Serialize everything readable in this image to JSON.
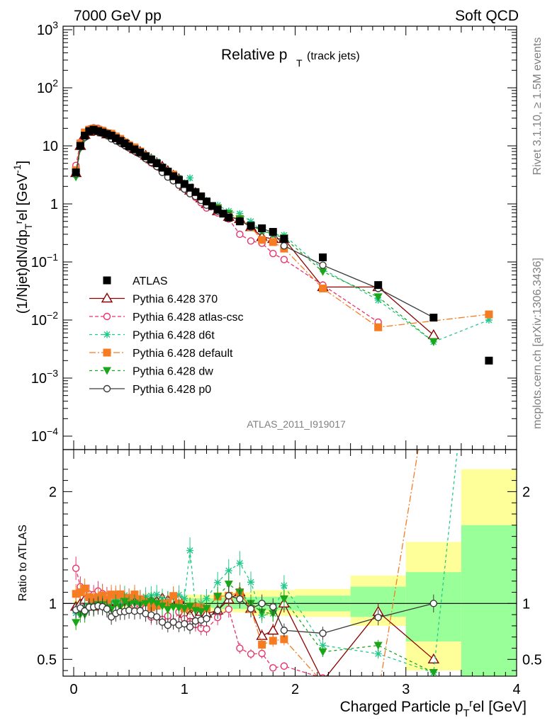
{
  "header": {
    "left": "7000 GeV pp",
    "right": "Soft QCD"
  },
  "side": {
    "rivet": "Rivet 3.1.10, ≥ 1.5M events",
    "mcplots": "mcplots.cern.ch [arXiv:1306.3436]"
  },
  "plot_title": {
    "main": "Relative p",
    "sub": "T",
    "note": "(track jets)"
  },
  "analysis_id": "ATLAS_2011_I919017",
  "colors": {
    "atlas": "#000000",
    "p370": "#8b0000",
    "atlas_csc": "#e8336a",
    "d6t": "#23c98a",
    "default": "#f57c23",
    "dw": "#1aa51a",
    "p0": "#3a3a3a",
    "band_yellow": "#ffff99",
    "band_green": "#99ff99"
  },
  "chart_data": [
    {
      "type": "line",
      "panel": "main",
      "ylabel": "(1/Njet)dN/dp_T^rel [GeV^-1]",
      "yscale": "log",
      "ylim": [
        0.0001,
        1000
      ],
      "xlim": [
        -0.1,
        4.0
      ],
      "yticks": [
        {
          "v": 0.0001,
          "base": "10",
          "exp": "−4"
        },
        {
          "v": 0.001,
          "base": "10",
          "exp": "−3"
        },
        {
          "v": 0.01,
          "base": "10",
          "exp": "−2"
        },
        {
          "v": 0.1,
          "base": "10",
          "exp": "−1"
        },
        {
          "v": 1,
          "base": "1",
          "exp": ""
        },
        {
          "v": 10,
          "base": "10",
          "exp": ""
        },
        {
          "v": 100,
          "base": "10",
          "exp": "2"
        },
        {
          "v": 1000,
          "base": "10",
          "exp": "3"
        }
      ],
      "legend_position": "left-middle",
      "series": [
        {
          "key": "atlas",
          "name": "ATLAS",
          "marker": "square",
          "x": [
            0.02,
            0.06,
            0.1,
            0.14,
            0.18,
            0.22,
            0.26,
            0.3,
            0.34,
            0.38,
            0.42,
            0.46,
            0.5,
            0.55,
            0.6,
            0.65,
            0.7,
            0.75,
            0.8,
            0.85,
            0.9,
            0.95,
            1.0,
            1.05,
            1.1,
            1.15,
            1.2,
            1.25,
            1.3,
            1.35,
            1.4,
            1.5,
            1.6,
            1.7,
            1.8,
            1.9,
            2.25,
            2.75,
            3.25,
            3.75
          ],
          "y": [
            3.5,
            10,
            15,
            18,
            19,
            18,
            17,
            16,
            15,
            13.5,
            12.2,
            11,
            9.8,
            8.7,
            7.7,
            6.6,
            5.8,
            5.0,
            4.2,
            3.6,
            3.0,
            2.6,
            2.2,
            1.9,
            1.6,
            1.35,
            1.1,
            0.92,
            0.8,
            0.68,
            0.58,
            0.5,
            0.42,
            0.38,
            0.33,
            0.25,
            0.12,
            0.04,
            0.011,
            0.002
          ]
        },
        {
          "key": "p370",
          "name": "Pythia 6.428 370",
          "marker": "triangle",
          "dash": "",
          "x": [
            0.02,
            0.06,
            0.1,
            0.14,
            0.18,
            0.22,
            0.26,
            0.3,
            0.34,
            0.38,
            0.42,
            0.46,
            0.5,
            0.55,
            0.6,
            0.65,
            0.7,
            0.75,
            0.8,
            0.85,
            0.9,
            0.95,
            1.0,
            1.05,
            1.1,
            1.15,
            1.2,
            1.3,
            1.4,
            1.5,
            1.6,
            1.7,
            1.8,
            1.9,
            2.25,
            2.75,
            3.25
          ],
          "y": [
            3.4,
            10,
            15.5,
            17.5,
            18.5,
            18,
            17.2,
            15.8,
            15.2,
            13.8,
            12.4,
            11.3,
            10.2,
            8.8,
            7.9,
            6.8,
            5.9,
            5.1,
            4.4,
            3.7,
            3.1,
            2.7,
            2.0,
            1.7,
            1.55,
            1.25,
            1.0,
            0.75,
            0.6,
            0.55,
            0.4,
            0.27,
            0.25,
            0.25,
            0.037,
            0.037,
            0.0055
          ]
        },
        {
          "key": "atlas_csc",
          "name": "Pythia 6.428 atlas-csc",
          "marker": "circle-open",
          "dash": "5,3",
          "x": [
            0.02,
            0.06,
            0.1,
            0.14,
            0.18,
            0.22,
            0.26,
            0.3,
            0.34,
            0.38,
            0.42,
            0.46,
            0.5,
            0.55,
            0.6,
            0.65,
            0.7,
            0.75,
            0.8,
            0.85,
            0.9,
            0.95,
            1.0,
            1.05,
            1.1,
            1.15,
            1.2,
            1.3,
            1.4,
            1.5,
            1.6,
            1.7,
            1.8,
            1.9,
            2.25,
            2.75
          ],
          "y": [
            4.6,
            11.5,
            16.5,
            19.5,
            20.5,
            20,
            18.5,
            17,
            15.8,
            14.2,
            12.6,
            11.3,
            10,
            8.6,
            7.6,
            6.3,
            5.1,
            4.4,
            3.6,
            3.2,
            2.5,
            2.4,
            1.9,
            1.55,
            1.3,
            1.05,
            0.85,
            0.7,
            0.55,
            0.3,
            0.23,
            0.21,
            0.14,
            0.11,
            0.04,
            0.0092
          ]
        },
        {
          "key": "d6t",
          "name": "Pythia 6.428 d6t",
          "marker": "star",
          "dash": "4,4",
          "x": [
            0.02,
            0.06,
            0.1,
            0.14,
            0.18,
            0.22,
            0.26,
            0.3,
            0.34,
            0.38,
            0.42,
            0.46,
            0.5,
            0.55,
            0.6,
            0.65,
            0.7,
            0.75,
            0.8,
            0.85,
            0.9,
            0.95,
            1.0,
            1.05,
            1.1,
            1.15,
            1.2,
            1.3,
            1.4,
            1.5,
            1.6,
            1.7,
            1.8,
            1.9,
            2.25,
            2.75,
            3.25,
            3.75
          ],
          "y": [
            3.2,
            9.5,
            14.5,
            17.5,
            18.5,
            18.2,
            17.5,
            16.2,
            15.2,
            14,
            12.4,
            11.8,
            10.3,
            9.2,
            8.0,
            7.0,
            6.2,
            5.4,
            4.4,
            3.7,
            3.2,
            2.8,
            2.3,
            2.8,
            1.55,
            1.35,
            1.15,
            0.95,
            0.75,
            0.68,
            0.5,
            0.34,
            0.3,
            0.29,
            0.075,
            0.022,
            0.0042,
            0.01
          ]
        },
        {
          "key": "default",
          "name": "Pythia 6.428 default",
          "marker": "square",
          "dash": "9,3,2,3",
          "x": [
            0.02,
            0.06,
            0.1,
            0.14,
            0.18,
            0.22,
            0.26,
            0.3,
            0.34,
            0.38,
            0.42,
            0.46,
            0.5,
            0.55,
            0.6,
            0.65,
            0.7,
            0.75,
            0.8,
            0.85,
            0.9,
            0.95,
            1.0,
            1.05,
            1.1,
            1.15,
            1.2,
            1.3,
            1.4,
            1.5,
            1.6,
            1.7,
            1.8,
            1.9,
            2.25,
            2.75,
            3.75
          ],
          "y": [
            3.8,
            11,
            17,
            19,
            19.8,
            19,
            18.2,
            16.5,
            16.2,
            14.5,
            13.2,
            11.5,
            10.3,
            9.4,
            8.0,
            6.7,
            5.6,
            4.9,
            4.2,
            3.6,
            3.2,
            2.6,
            2.1,
            1.85,
            1.55,
            1.3,
            1.05,
            0.85,
            0.62,
            0.55,
            0.4,
            0.24,
            0.22,
            0.17,
            0.035,
            0.0075,
            0.0125
          ]
        },
        {
          "key": "dw",
          "name": "Pythia 6.428 dw",
          "marker": "triangle-down",
          "dash": "4,4",
          "x": [
            0.02,
            0.06,
            0.1,
            0.14,
            0.18,
            0.22,
            0.26,
            0.3,
            0.34,
            0.38,
            0.42,
            0.46,
            0.5,
            0.55,
            0.6,
            0.65,
            0.7,
            0.75,
            0.8,
            0.85,
            0.9,
            0.95,
            1.0,
            1.05,
            1.1,
            1.15,
            1.2,
            1.3,
            1.4,
            1.5,
            1.6,
            1.7,
            1.8,
            1.9,
            2.25,
            2.75,
            3.25
          ],
          "y": [
            2.9,
            9.0,
            13.5,
            17.5,
            18.2,
            17.8,
            16.8,
            15.4,
            14.2,
            13.5,
            11.8,
            11.2,
            9.7,
            8.7,
            7.6,
            6.6,
            5.9,
            5.0,
            4.1,
            3.4,
            2.9,
            2.5,
            2.1,
            1.85,
            1.5,
            1.25,
            1.05,
            0.85,
            0.68,
            0.55,
            0.42,
            0.35,
            0.3,
            0.26,
            0.068,
            0.025,
            0.0042
          ]
        },
        {
          "key": "p0",
          "name": "Pythia 6.428 p0",
          "marker": "circle-open",
          "dash": "",
          "x": [
            0.02,
            0.06,
            0.1,
            0.14,
            0.18,
            0.22,
            0.26,
            0.3,
            0.34,
            0.38,
            0.42,
            0.46,
            0.5,
            0.55,
            0.6,
            0.65,
            0.7,
            0.75,
            0.8,
            0.85,
            0.9,
            0.95,
            1.0,
            1.05,
            1.1,
            1.15,
            1.2,
            1.3,
            1.4,
            1.5,
            1.6,
            1.7,
            1.8,
            1.9,
            2.25,
            2.75,
            3.25
          ],
          "y": [
            3.3,
            9.6,
            14,
            17.4,
            18.4,
            17.6,
            16.5,
            15.2,
            13.2,
            12.3,
            11.3,
            10.2,
            9.2,
            8.1,
            7.2,
            6.0,
            5.2,
            4.4,
            3.5,
            2.9,
            2.5,
            2.1,
            1.8,
            1.5,
            1.35,
            1.15,
            0.95,
            0.75,
            0.62,
            0.52,
            0.4,
            0.38,
            0.32,
            0.19,
            0.088,
            0.035,
            0.011
          ]
        }
      ]
    },
    {
      "type": "line",
      "panel": "ratio",
      "ylabel": "Ratio to ATLAS",
      "xlabel": "Charged Particle p_T^rel [GeV]",
      "ylim": [
        0.35,
        2.3
      ],
      "xlim": [
        -0.1,
        4.0
      ],
      "yticks": [
        0.5,
        1,
        2
      ],
      "xticks": [
        0,
        1,
        2,
        3,
        4
      ],
      "bands": [
        {
          "x0": 0.0,
          "x1": 0.4,
          "y_lo": 0.97,
          "y_hi": 1.03,
          "g_lo": 0.985,
          "g_hi": 1.015
        },
        {
          "x0": 0.4,
          "x1": 1.0,
          "y_lo": 0.95,
          "y_hi": 1.05,
          "g_lo": 0.975,
          "g_hi": 1.025
        },
        {
          "x0": 1.0,
          "x1": 1.3,
          "y_lo": 0.93,
          "y_hi": 1.08,
          "g_lo": 0.96,
          "g_hi": 1.045
        },
        {
          "x0": 1.3,
          "x1": 1.6,
          "y_lo": 0.92,
          "y_hi": 1.1,
          "g_lo": 0.95,
          "g_hi": 1.055
        },
        {
          "x0": 1.6,
          "x1": 2.0,
          "y_lo": 0.89,
          "y_hi": 1.12,
          "g_lo": 0.94,
          "g_hi": 1.06
        },
        {
          "x0": 2.0,
          "x1": 2.5,
          "y_lo": 0.88,
          "y_hi": 1.13,
          "g_lo": 0.93,
          "g_hi": 1.07
        },
        {
          "x0": 2.5,
          "x1": 3.0,
          "y_lo": 0.8,
          "y_hi": 1.25,
          "g_lo": 0.88,
          "g_hi": 1.15
        },
        {
          "x0": 3.0,
          "x1": 3.5,
          "y_lo": 0.4,
          "y_hi": 1.55,
          "g_lo": 0.66,
          "g_hi": 1.28
        },
        {
          "x0": 3.5,
          "x1": 4.0,
          "y_lo": 0.35,
          "y_hi": 2.2,
          "g_lo": 0.35,
          "g_hi": 1.7
        }
      ]
    }
  ]
}
